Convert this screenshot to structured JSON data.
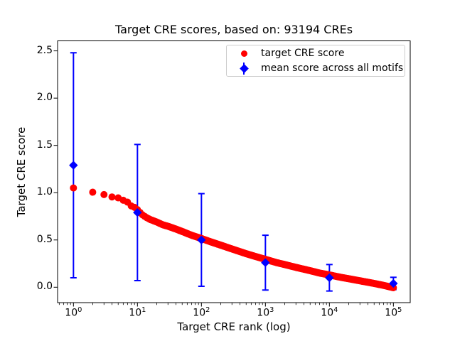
{
  "window": {
    "background": "#ffffff"
  },
  "chart_data": {
    "type": "scatter",
    "title": "Target CRE scores, based on: 93194 CREs",
    "xlabel": "Target CRE rank (log)",
    "ylabel": "Target CRE score",
    "x_scale": "log",
    "xlim_log10": [
      -0.248,
      5.263
    ],
    "ylim": [
      -0.163,
      2.606
    ],
    "grid": false,
    "x_ticks": [
      {
        "base": "10",
        "exp": "0",
        "value": 1
      },
      {
        "base": "10",
        "exp": "1",
        "value": 10
      },
      {
        "base": "10",
        "exp": "2",
        "value": 100
      },
      {
        "base": "10",
        "exp": "3",
        "value": 1000
      },
      {
        "base": "10",
        "exp": "4",
        "value": 10000
      },
      {
        "base": "10",
        "exp": "5",
        "value": 100000
      }
    ],
    "y_ticks": [
      {
        "value": 0.0,
        "label": "0.0"
      },
      {
        "value": 0.5,
        "label": "0.5"
      },
      {
        "value": 1.0,
        "label": "1.0"
      },
      {
        "value": 1.5,
        "label": "1.5"
      },
      {
        "value": 2.0,
        "label": "2.0"
      },
      {
        "value": 2.5,
        "label": "2.5"
      }
    ],
    "colors": {
      "target": "#ff0000",
      "mean": "#0000ff",
      "axis": "#000000"
    },
    "series": [
      {
        "name": "target CRE score",
        "marker": "circle",
        "color": "#ff0000",
        "points": [
          [
            1,
            1.05
          ],
          [
            2,
            1.005
          ],
          [
            3,
            0.98
          ],
          [
            4,
            0.955
          ],
          [
            5,
            0.945
          ],
          [
            6,
            0.92
          ],
          [
            7,
            0.9
          ],
          [
            8,
            0.86
          ],
          [
            9,
            0.845
          ],
          [
            10,
            0.82
          ],
          [
            11,
            0.79
          ],
          [
            12,
            0.765
          ],
          [
            14,
            0.735
          ],
          [
            16,
            0.715
          ],
          [
            20,
            0.69
          ],
          [
            25,
            0.66
          ],
          [
            30,
            0.645
          ],
          [
            40,
            0.615
          ],
          [
            50,
            0.59
          ],
          [
            70,
            0.55
          ],
          [
            100,
            0.515
          ],
          [
            140,
            0.48
          ],
          [
            200,
            0.445
          ],
          [
            300,
            0.405
          ],
          [
            500,
            0.355
          ],
          [
            700,
            0.325
          ],
          [
            1000,
            0.295
          ],
          [
            1500,
            0.26
          ],
          [
            2000,
            0.24
          ],
          [
            3000,
            0.21
          ],
          [
            5000,
            0.175
          ],
          [
            7000,
            0.15
          ],
          [
            10000,
            0.13
          ],
          [
            15000,
            0.105
          ],
          [
            20000,
            0.09
          ],
          [
            30000,
            0.068
          ],
          [
            50000,
            0.04
          ],
          [
            70000,
            0.02
          ],
          [
            100000,
            -0.005
          ]
        ]
      },
      {
        "name": "mean score across all motifs",
        "marker": "diamond",
        "color": "#0000ff",
        "x": [
          1,
          10,
          100,
          1000,
          10000,
          100000
        ],
        "mean": [
          1.29,
          0.79,
          0.5,
          0.26,
          0.1,
          0.04
        ],
        "err": [
          1.19,
          0.72,
          0.49,
          0.29,
          0.14,
          0.065
        ]
      }
    ],
    "legend": {
      "position": "upper right",
      "entries": [
        "target CRE score",
        "mean score across all motifs"
      ]
    }
  }
}
